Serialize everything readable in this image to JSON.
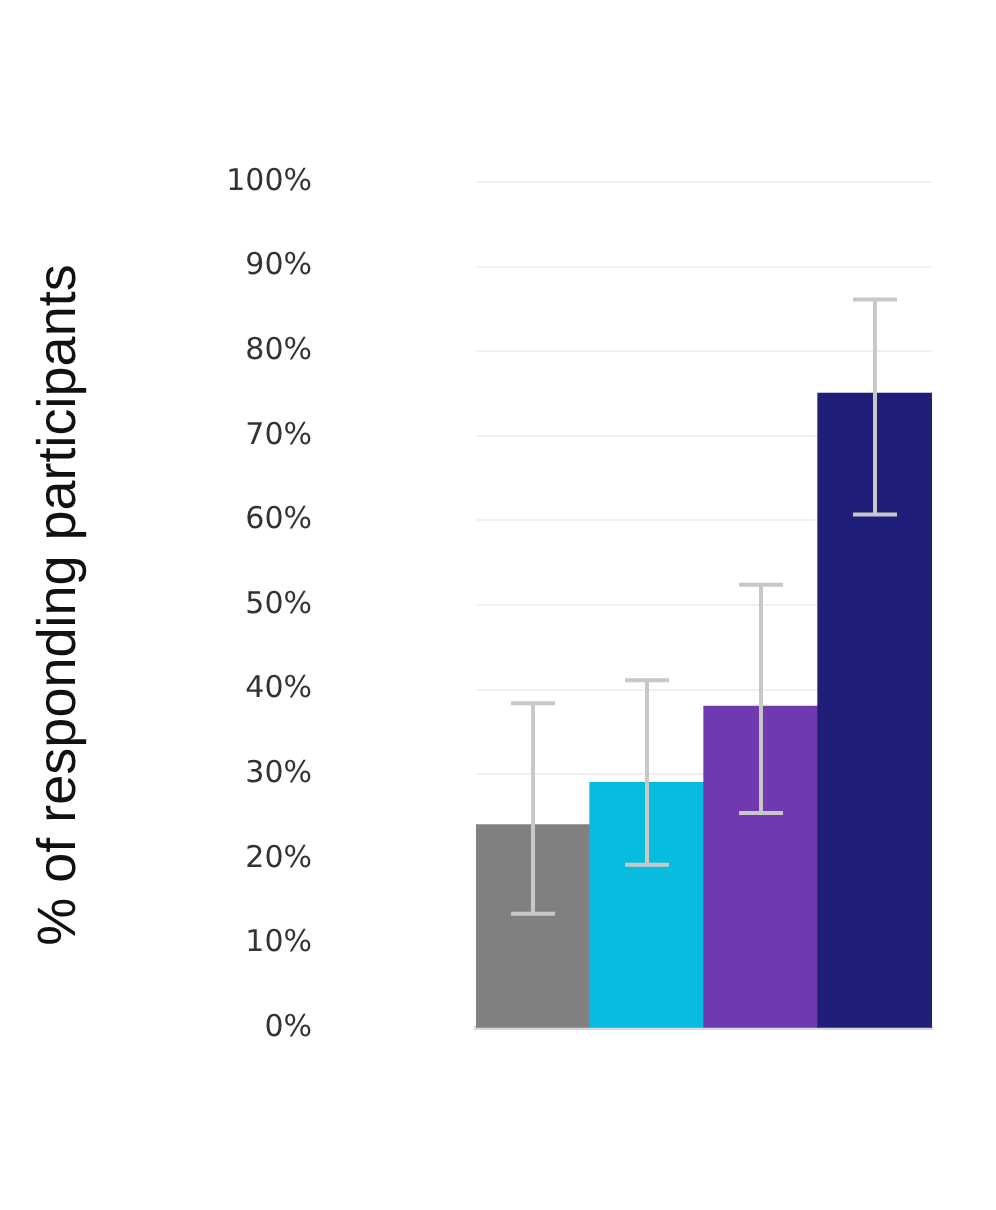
{
  "chart_data": {
    "type": "bar",
    "ylabel": "% of responding participants",
    "categories": [
      null,
      null,
      null,
      null
    ],
    "values": [
      24,
      29,
      38,
      75
    ],
    "colors": [
      "#808080",
      "#08bcdf",
      "#6f3ab0",
      "#1f1f7a"
    ],
    "errors": [
      [
        13.5,
        38.4
      ],
      [
        19.3,
        41.1
      ],
      [
        25.4,
        52.4
      ],
      [
        60.7,
        86.1
      ]
    ],
    "ylim": [
      0,
      100
    ],
    "yticks": [
      {
        "value": 0,
        "label": "0%"
      },
      {
        "value": 10,
        "label": "10%"
      },
      {
        "value": 20,
        "label": "20%"
      },
      {
        "value": 30,
        "label": "30%"
      },
      {
        "value": 40,
        "label": "40%"
      },
      {
        "value": 50,
        "label": "50%"
      },
      {
        "value": 60,
        "label": "60%"
      },
      {
        "value": 70,
        "label": "70%"
      },
      {
        "value": 80,
        "label": "80%"
      },
      {
        "value": 90,
        "label": "90%"
      },
      {
        "value": 100,
        "label": "100%"
      }
    ],
    "grid": "y",
    "legend": false
  }
}
